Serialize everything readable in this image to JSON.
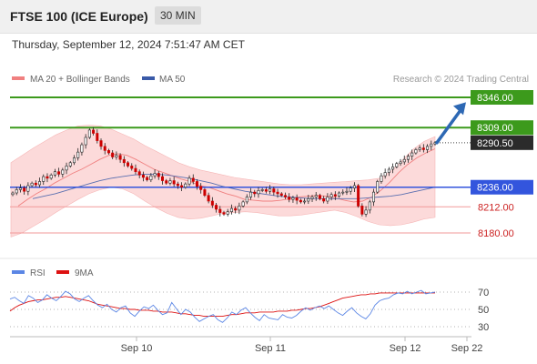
{
  "header": {
    "title": "FTSE 100 (ICE Europe)",
    "timeframe": "30 MIN",
    "datetime": "Thursday, September 12, 2024 7:51:47 AM CET"
  },
  "legend": {
    "ma20": "MA 20 + Bollinger Bands",
    "ma50": "MA 50",
    "credit": "Research © 2024 Trading Central",
    "rsi": "RSI",
    "ma9": "9MA"
  },
  "colors": {
    "band_fill": "#fbd3d3",
    "ma20": "#f08080",
    "ma50": "#5a6fb0",
    "up_candle": "#ffffff",
    "down_candle": "#cc0000",
    "green_level": "#3c9a1c",
    "blue_level": "#3355dd",
    "red_level": "#f29a9a",
    "price_tag": "#2b2b2b",
    "arrow": "#2d68b4",
    "rsi_line": "#5b86e5",
    "ma9_line": "#dd1111"
  },
  "chart_data": [
    {
      "type": "candlestick",
      "title": "FTSE 100 (ICE Europe)",
      "timeframe": "30 MIN",
      "x_ticks": [
        "Sep 10",
        "Sep 11",
        "Sep 12",
        "Sep 22"
      ],
      "y_range": [
        8163,
        8352
      ],
      "grid": false,
      "legend_position": "top-left",
      "levels": [
        {
          "value": 8346.0,
          "label": "8346.00",
          "kind": "resistance"
        },
        {
          "value": 8309.0,
          "label": "8309.00",
          "kind": "resistance"
        },
        {
          "value": 8290.5,
          "label": "8290.50",
          "kind": "last_price"
        },
        {
          "value": 8236.0,
          "label": "8236.00",
          "kind": "pivot"
        },
        {
          "value": 8212.0,
          "label": "8212.00",
          "kind": "support"
        },
        {
          "value": 8180.0,
          "label": "8180.00",
          "kind": "support"
        }
      ],
      "forecast_arrow": {
        "from": 8290.5,
        "to": 8340,
        "direction": "up"
      },
      "series": [
        {
          "name": "MA 20 + Bollinger Bands"
        },
        {
          "name": "MA 50"
        }
      ],
      "closes": [
        8229,
        8233,
        8235,
        8231,
        8238,
        8241,
        8239,
        8243,
        8249,
        8247,
        8251,
        8255,
        8252,
        8257,
        8262,
        8266,
        8272,
        8279,
        8288,
        8297,
        8306,
        8302,
        8293,
        8286,
        8281,
        8278,
        8273,
        8275,
        8270,
        8266,
        8262,
        8259,
        8255,
        8251,
        8248,
        8245,
        8250,
        8253,
        8249,
        8244,
        8241,
        8244,
        8240,
        8238,
        8236,
        8240,
        8247,
        8243,
        8237,
        8233,
        8226,
        8219,
        8214,
        8209,
        8205,
        8203,
        8206,
        8210,
        8208,
        8213,
        8218,
        8224,
        8230,
        8228,
        8232,
        8233,
        8231,
        8234,
        8230,
        8228,
        8226,
        8224,
        8221,
        8223,
        8220,
        8218,
        8219,
        8222,
        8224,
        8226,
        8222,
        8219,
        8224,
        8227,
        8225,
        8229,
        8230,
        8231,
        8235,
        8238,
        8213,
        8203,
        8208,
        8218,
        8230,
        8243,
        8250,
        8254,
        8258,
        8261,
        8265,
        8267,
        8270,
        8274,
        8278,
        8282,
        8284,
        8282,
        8286,
        8289,
        8290.5
      ],
      "candle_ranges": [
        {
          "from": "Sep 10",
          "open_low": 8222,
          "high": 8309
        }
      ],
      "ma20": [
        8213,
        8221,
        8228,
        8234,
        8241,
        8247,
        8253,
        8258,
        8264,
        8270,
        8275,
        8277,
        8275,
        8270,
        8264,
        8258,
        8254,
        8250,
        8246,
        8243,
        8238,
        8236,
        8232,
        8228,
        8225,
        8221,
        8220,
        8219,
        8219,
        8220,
        8222,
        8224,
        8225,
        8226,
        8225,
        8223,
        8220,
        8218,
        8219,
        8224,
        8232,
        8242,
        8254,
        8264,
        8272,
        8278,
        8283
      ],
      "ma50": [
        8222,
        8225,
        8228,
        8232,
        8236,
        8240,
        8244,
        8247,
        8249,
        8251,
        8252,
        8252,
        8251,
        8249,
        8247,
        8244,
        8241,
        8237,
        8234,
        8231,
        8229,
        8227,
        8225,
        8224,
        8223,
        8222,
        8222,
        8222,
        8222,
        8222,
        8223,
        8224,
        8225,
        8227,
        8230,
        8233,
        8236
      ],
      "bb_upper": [
        8266,
        8275,
        8284,
        8292,
        8300,
        8306,
        8311,
        8312,
        8311,
        8307,
        8301,
        8295,
        8287,
        8280,
        8273,
        8266,
        8261,
        8257,
        8254,
        8251,
        8248,
        8246,
        8244,
        8242,
        8240,
        8239,
        8239,
        8240,
        8241,
        8242,
        8243,
        8244,
        8245,
        8247,
        8255,
        8268,
        8282,
        8292,
        8298
      ],
      "bb_lower": [
        8175,
        8180,
        8188,
        8196,
        8205,
        8213,
        8221,
        8228,
        8233,
        8236,
        8234,
        8228,
        8219,
        8211,
        8204,
        8199,
        8197,
        8198,
        8201,
        8204,
        8205,
        8206,
        8205,
        8203,
        8201,
        8201,
        8202,
        8204,
        8206,
        8208,
        8205,
        8200,
        8194,
        8190,
        8189,
        8190,
        8193,
        8197,
        8199
      ]
    },
    {
      "type": "line",
      "title": "RSI",
      "y_ticks": [
        30,
        50,
        70
      ],
      "y_range": [
        20,
        80
      ],
      "x_ticks": [
        "Sep 10",
        "Sep 11",
        "Sep 12",
        "Sep 22"
      ],
      "series": [
        {
          "name": "RSI",
          "values": [
            62,
            64,
            60,
            57,
            66,
            63,
            58,
            61,
            67,
            63,
            60,
            65,
            71,
            68,
            62,
            59,
            63,
            66,
            60,
            55,
            52,
            56,
            50,
            47,
            52,
            54,
            46,
            42,
            48,
            53,
            51,
            55,
            49,
            44,
            46,
            58,
            51,
            44,
            50,
            47,
            41,
            36,
            39,
            42,
            44,
            38,
            35,
            40,
            47,
            44,
            49,
            52,
            46,
            41,
            37,
            44,
            40,
            39,
            38,
            44,
            41,
            40,
            43,
            48,
            52,
            49,
            52,
            54,
            51,
            54,
            50,
            46,
            43,
            48,
            52,
            46,
            42,
            39,
            45,
            55,
            60,
            62,
            63,
            67,
            69,
            68,
            71,
            68,
            70,
            72,
            68,
            69,
            70
          ]
        },
        {
          "name": "9MA",
          "values": [
            48,
            52,
            55,
            57,
            59,
            60,
            61,
            61,
            62,
            63,
            64,
            64,
            65,
            64,
            63,
            62,
            61,
            60,
            58,
            56,
            55,
            54,
            53,
            52,
            51,
            51,
            50,
            50,
            49,
            49,
            49,
            48,
            48,
            47,
            47,
            47,
            46,
            45,
            45,
            44,
            43,
            43,
            42,
            42,
            42,
            42,
            42,
            43,
            44,
            44,
            45,
            46,
            46,
            46,
            47,
            47,
            47,
            47,
            48,
            48,
            48,
            49,
            49,
            50,
            51,
            51,
            52,
            53,
            55,
            57,
            59,
            61,
            63,
            64,
            65,
            66,
            67,
            67,
            68,
            68,
            69,
            69,
            69,
            69,
            69,
            69,
            69,
            69,
            69,
            69,
            69,
            69,
            69
          ]
        }
      ]
    }
  ]
}
